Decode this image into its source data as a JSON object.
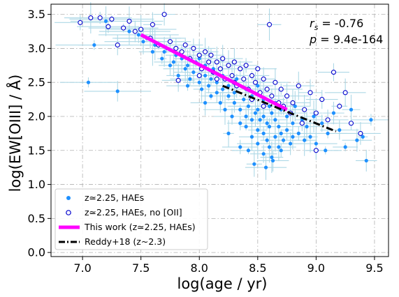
{
  "chart_data": {
    "type": "scatter",
    "xlabel": "log(age / yr)",
    "ylabel": "log(EW[OIII] / Å)",
    "xlim": [
      6.73,
      9.62
    ],
    "ylim": [
      -0.06,
      3.65
    ],
    "xticks": [
      "7.0",
      "7.5",
      "8.0",
      "8.5",
      "9.0",
      "9.5"
    ],
    "yticks": [
      "0.0",
      "0.5",
      "1.0",
      "1.5",
      "2.0",
      "2.5",
      "3.0",
      "3.5"
    ],
    "grid": "dash-dot, both axes",
    "legend_position": "lower-left",
    "annotation": {
      "rs_label": "r",
      "rs_sub": "s",
      "rs_value": " = -0.76",
      "p_label": "p",
      "p_value": " = 9.4e-164"
    },
    "series": [
      {
        "name": "z ≃ 2.25, HAEs",
        "legend_label": "z≃2.25, HAEs",
        "marker": "filled-circle",
        "color": "#1e90ff",
        "errorbar_color": "#add8e6",
        "points": [
          [
            7.05,
            2.5
          ],
          [
            7.1,
            3.05
          ],
          [
            7.2,
            3.4
          ],
          [
            7.3,
            2.37
          ],
          [
            7.4,
            3.25
          ],
          [
            7.48,
            3.2
          ],
          [
            7.52,
            3.1
          ],
          [
            7.55,
            3.15
          ],
          [
            7.6,
            2.95
          ],
          [
            7.62,
            3.05
          ],
          [
            7.68,
            2.85
          ],
          [
            7.7,
            2.95
          ],
          [
            7.72,
            3.0
          ],
          [
            7.75,
            2.75
          ],
          [
            7.78,
            2.8
          ],
          [
            7.8,
            2.9
          ],
          [
            7.82,
            2.6
          ],
          [
            7.85,
            2.85
          ],
          [
            7.88,
            2.7
          ],
          [
            7.9,
            2.75
          ],
          [
            7.92,
            2.55
          ],
          [
            7.95,
            2.65
          ],
          [
            7.97,
            2.8
          ],
          [
            8.0,
            2.5
          ],
          [
            8.0,
            2.85
          ],
          [
            8.02,
            2.4
          ],
          [
            8.05,
            2.6
          ],
          [
            8.05,
            2.75
          ],
          [
            8.08,
            2.45
          ],
          [
            8.1,
            2.55
          ],
          [
            8.1,
            2.3
          ],
          [
            8.12,
            2.7
          ],
          [
            8.15,
            2.35
          ],
          [
            8.15,
            2.5
          ],
          [
            8.18,
            2.2
          ],
          [
            8.2,
            2.4
          ],
          [
            8.2,
            2.6
          ],
          [
            8.22,
            2.1
          ],
          [
            8.25,
            2.3
          ],
          [
            8.25,
            2.45
          ],
          [
            8.28,
            2.0
          ],
          [
            8.3,
            2.2
          ],
          [
            8.3,
            2.35
          ],
          [
            8.32,
            2.55
          ],
          [
            8.35,
            1.9
          ],
          [
            8.35,
            2.1
          ],
          [
            8.38,
            2.25
          ],
          [
            8.4,
            1.85
          ],
          [
            8.4,
            2.0
          ],
          [
            8.4,
            2.4
          ],
          [
            8.42,
            2.15
          ],
          [
            8.45,
            1.7
          ],
          [
            8.45,
            1.95
          ],
          [
            8.45,
            2.3
          ],
          [
            8.48,
            2.05
          ],
          [
            8.5,
            1.6
          ],
          [
            8.5,
            1.8
          ],
          [
            8.5,
            2.1
          ],
          [
            8.5,
            2.45
          ],
          [
            8.52,
            1.95
          ],
          [
            8.55,
            1.45
          ],
          [
            8.55,
            1.75
          ],
          [
            8.55,
            2.0
          ],
          [
            8.55,
            2.25
          ],
          [
            8.58,
            1.65
          ],
          [
            8.58,
            1.9
          ],
          [
            8.6,
            1.55
          ],
          [
            8.6,
            1.85
          ],
          [
            8.6,
            2.15
          ],
          [
            8.62,
            1.4
          ],
          [
            8.62,
            2.05
          ],
          [
            8.65,
            1.7
          ],
          [
            8.65,
            1.95
          ],
          [
            8.65,
            2.2
          ],
          [
            8.68,
            1.55
          ],
          [
            8.68,
            1.85
          ],
          [
            8.7,
            1.5
          ],
          [
            8.7,
            1.75
          ],
          [
            8.7,
            2.1
          ],
          [
            8.72,
            1.65
          ],
          [
            8.75,
            1.8
          ],
          [
            8.75,
            2.0
          ],
          [
            8.78,
            1.6
          ],
          [
            8.8,
            1.7
          ],
          [
            8.8,
            1.9
          ],
          [
            8.82,
            2.15
          ],
          [
            8.85,
            1.75
          ],
          [
            8.88,
            1.95
          ],
          [
            8.9,
            1.65
          ],
          [
            8.92,
            1.85
          ],
          [
            8.95,
            1.7
          ],
          [
            8.98,
            2.0
          ],
          [
            9.0,
            1.6
          ],
          [
            9.05,
            1.9
          ],
          [
            9.08,
            1.5
          ],
          [
            9.1,
            1.75
          ],
          [
            9.15,
            2.05
          ],
          [
            9.2,
            1.8
          ],
          [
            9.25,
            1.55
          ],
          [
            9.3,
            2.1
          ],
          [
            9.35,
            1.65
          ],
          [
            9.4,
            1.7
          ],
          [
            9.43,
            1.35
          ],
          [
            9.47,
            1.95
          ],
          [
            8.47,
            1.3
          ],
          [
            8.57,
            1.25
          ],
          [
            8.63,
            1.35
          ],
          [
            8.35,
            1.55
          ],
          [
            8.25,
            1.75
          ],
          [
            8.42,
            1.5
          ],
          [
            7.9,
            2.45
          ],
          [
            8.05,
            2.2
          ]
        ]
      },
      {
        "name": "z ≃ 2.25, HAEs, no [OII]",
        "legend_label": "z≃2.25, HAEs, no [OII]",
        "marker": "open-circle",
        "color": "#0000cd",
        "errorbar_color": "#add8e6",
        "points": [
          [
            6.98,
            3.38
          ],
          [
            7.07,
            3.45
          ],
          [
            7.15,
            3.45
          ],
          [
            7.22,
            3.32
          ],
          [
            7.25,
            3.43
          ],
          [
            7.35,
            3.3
          ],
          [
            7.45,
            3.25
          ],
          [
            7.5,
            3.28
          ],
          [
            7.58,
            3.15
          ],
          [
            7.65,
            3.05
          ],
          [
            7.7,
            3.5
          ],
          [
            7.75,
            3.1
          ],
          [
            7.8,
            3.0
          ],
          [
            7.85,
            2.95
          ],
          [
            7.88,
            3.05
          ],
          [
            7.92,
            2.85
          ],
          [
            7.95,
            3.0
          ],
          [
            8.0,
            2.9
          ],
          [
            8.02,
            2.7
          ],
          [
            8.05,
            2.95
          ],
          [
            8.08,
            2.8
          ],
          [
            8.1,
            2.9
          ],
          [
            8.12,
            2.65
          ],
          [
            8.15,
            2.8
          ],
          [
            8.18,
            2.7
          ],
          [
            8.2,
            2.85
          ],
          [
            8.22,
            2.55
          ],
          [
            8.25,
            2.75
          ],
          [
            8.28,
            2.6
          ],
          [
            8.3,
            2.8
          ],
          [
            8.32,
            2.45
          ],
          [
            8.35,
            2.7
          ],
          [
            8.38,
            2.55
          ],
          [
            8.4,
            2.75
          ],
          [
            8.42,
            2.4
          ],
          [
            8.45,
            2.6
          ],
          [
            8.48,
            2.5
          ],
          [
            8.5,
            2.7
          ],
          [
            8.52,
            2.35
          ],
          [
            8.55,
            2.55
          ],
          [
            8.58,
            2.4
          ],
          [
            8.6,
            3.35
          ],
          [
            8.62,
            2.3
          ],
          [
            8.65,
            2.5
          ],
          [
            8.68,
            2.2
          ],
          [
            8.7,
            2.4
          ],
          [
            8.72,
            2.15
          ],
          [
            8.75,
            2.3
          ],
          [
            8.78,
            2.05
          ],
          [
            8.8,
            2.2
          ],
          [
            8.85,
            2.45
          ],
          [
            8.9,
            2.1
          ],
          [
            8.95,
            2.35
          ],
          [
            9.0,
            2.05
          ],
          [
            9.0,
            1.5
          ],
          [
            9.05,
            2.25
          ],
          [
            9.1,
            1.95
          ],
          [
            9.15,
            2.65
          ],
          [
            9.2,
            2.15
          ],
          [
            9.25,
            2.35
          ],
          [
            9.3,
            1.9
          ],
          [
            9.38,
            1.75
          ],
          [
            7.4,
            3.4
          ],
          [
            7.6,
            3.35
          ],
          [
            8.0,
            2.6
          ],
          [
            8.15,
            2.55
          ],
          [
            8.3,
            2.5
          ],
          [
            8.45,
            2.25
          ],
          [
            8.55,
            2.15
          ],
          [
            7.3,
            3.05
          ],
          [
            8.88,
            1.9
          ],
          [
            7.82,
            2.53
          ]
        ]
      },
      {
        "name": "This work (z ≃ 2.25, HAEs)",
        "legend_label": "This work (z≃2.25, HAEs)",
        "marker": "line",
        "color": "#ff00ff",
        "x": [
          7.5,
          8.75
        ],
        "y": [
          3.2,
          2.1
        ]
      },
      {
        "name": "Reddy+18 (z~2.3)",
        "legend_label": "Reddy+18 (z~2.3)",
        "marker": "dash-dot",
        "color": "#000000",
        "x": [
          8.2,
          9.17
        ],
        "y": [
          2.45,
          1.78
        ]
      }
    ]
  }
}
